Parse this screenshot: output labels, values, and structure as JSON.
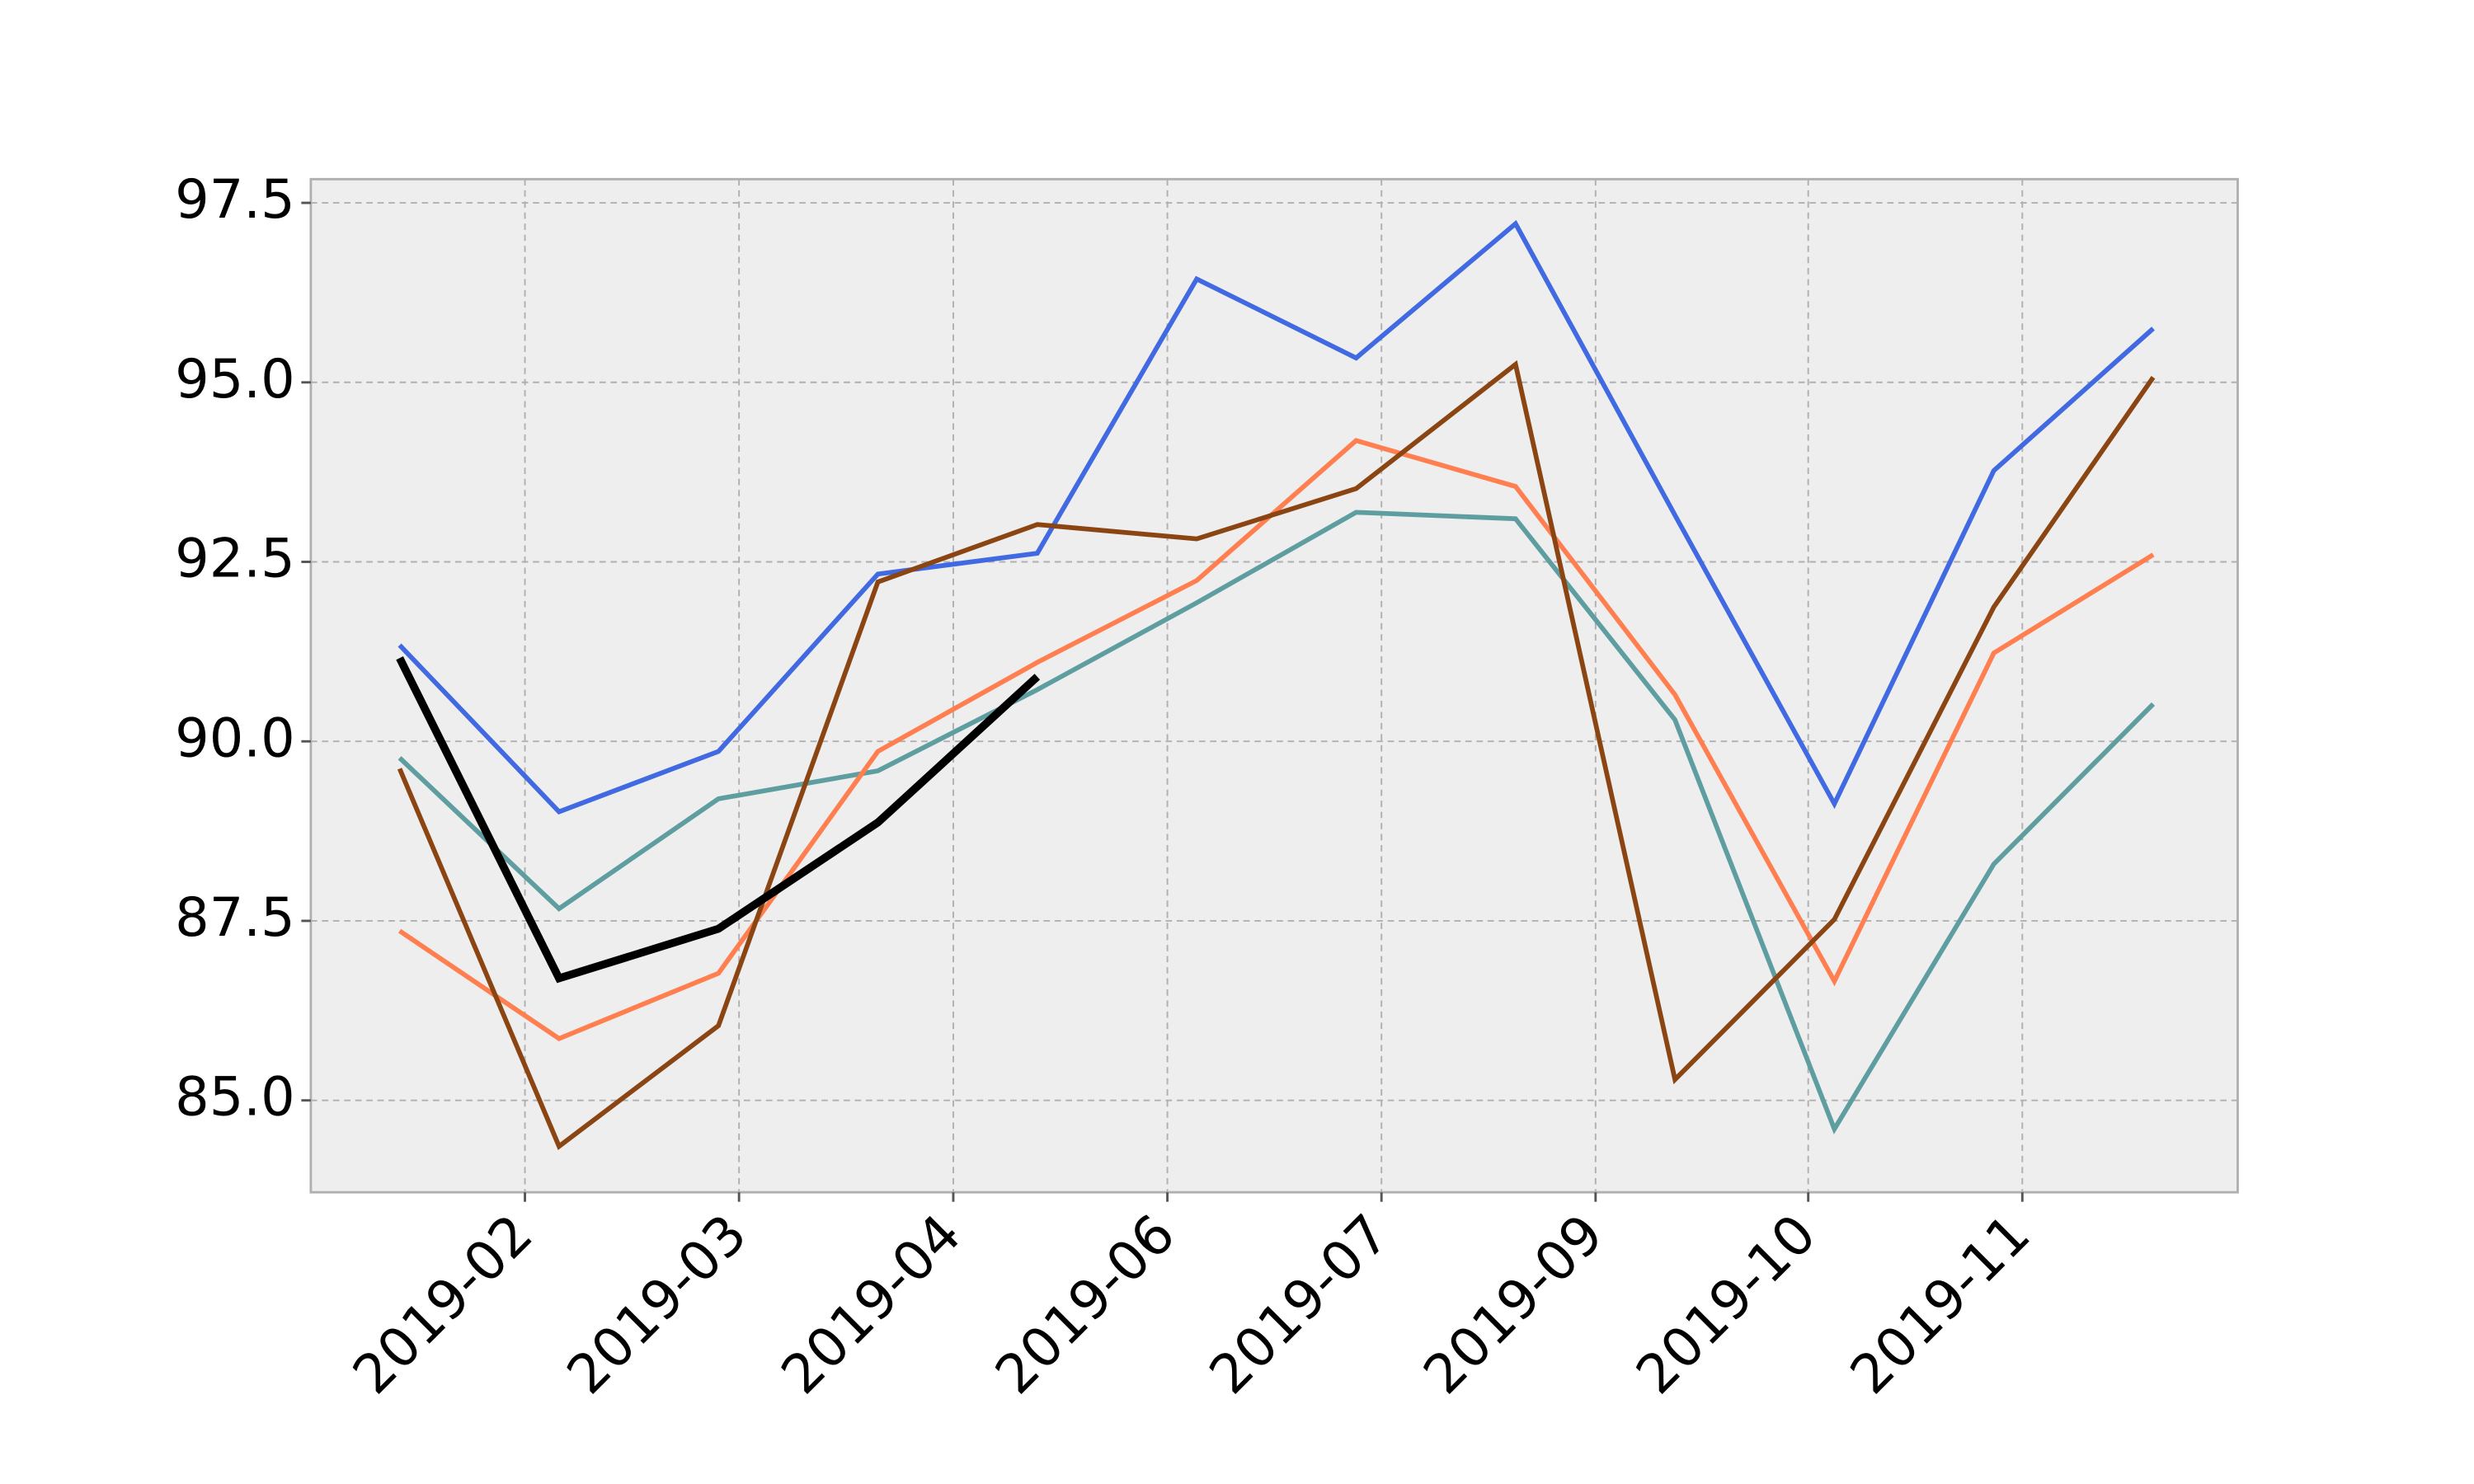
{
  "chart_data": {
    "type": "line",
    "x": [
      0,
      1,
      2,
      3,
      4,
      5,
      6,
      7,
      8,
      9,
      10,
      11
    ],
    "xlim": [
      -0.557,
      11.53
    ],
    "xticks": [
      {
        "value": 0.786,
        "label": "2019-02"
      },
      {
        "value": 2.129,
        "label": "2019-03"
      },
      {
        "value": 3.473,
        "label": "2019-04"
      },
      {
        "value": 4.816,
        "label": "2019-06"
      },
      {
        "value": 6.159,
        "label": "2019-07"
      },
      {
        "value": 7.502,
        "label": "2019-09"
      },
      {
        "value": 8.836,
        "label": "2019-10"
      },
      {
        "value": 10.179,
        "label": "2019-11"
      }
    ],
    "ylim": [
      83.72,
      97.83
    ],
    "yticks": [
      {
        "value": 85.0,
        "label": "85.0"
      },
      87.5,
      {
        "value": 90.0,
        "label": "90.0"
      },
      92.5,
      {
        "value": 95.0,
        "label": "95.0"
      },
      97.5
    ],
    "grid": true,
    "series": [
      {
        "color": "#4169e1",
        "width": 3,
        "values": [
          91.34,
          89.02,
          89.86,
          92.33,
          92.62,
          96.44,
          95.34,
          97.21,
          93.15,
          89.13,
          93.77,
          95.75
        ]
      },
      {
        "color": "#5f9ea0",
        "width": 3,
        "values": [
          89.77,
          87.67,
          89.2,
          89.59,
          90.72,
          91.93,
          93.19,
          93.1,
          90.3,
          84.6,
          88.29,
          90.52
        ]
      },
      {
        "color": "#ff7f50",
        "width": 3,
        "values": [
          87.36,
          85.86,
          86.77,
          89.86,
          91.1,
          92.24,
          94.19,
          93.55,
          90.65,
          86.66,
          91.23,
          92.6
        ]
      },
      {
        "color": "#8b4513",
        "width": 3,
        "values": [
          89.62,
          84.36,
          86.04,
          92.22,
          93.02,
          92.82,
          93.52,
          95.25,
          85.29,
          87.52,
          91.87,
          95.07
        ]
      },
      {
        "color": "#000000",
        "width": 5,
        "values": [
          91.16,
          86.7,
          87.39,
          88.87,
          90.9,
          null,
          null,
          null,
          null,
          null,
          null,
          null
        ]
      }
    ]
  }
}
